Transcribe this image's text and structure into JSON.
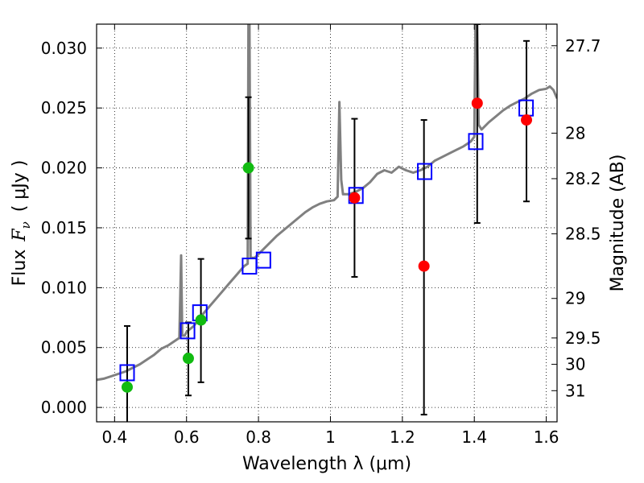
{
  "chart_data": {
    "type": "scatter",
    "xlabel": "Wavelength  λ (μm)",
    "ylabel": "Flux  Fν  ( μJy )",
    "ylabel_parts": {
      "prefix": "Flux",
      "symbol": "F",
      "subscript": "ν",
      "units": "( μJy )"
    },
    "y2label": "Magnitude (AB)",
    "xlim": [
      0.35,
      1.63
    ],
    "ylim": [
      -0.0012,
      0.032
    ],
    "xticks": [
      {
        "value": 0.4,
        "label": "0.4"
      },
      {
        "value": 0.6,
        "label": "0.6"
      },
      {
        "value": 0.8,
        "label": "0.8"
      },
      {
        "value": 1.0,
        "label": "1"
      },
      {
        "value": 1.2,
        "label": "1.2"
      },
      {
        "value": 1.4,
        "label": "1.4"
      },
      {
        "value": 1.6,
        "label": "1.6"
      }
    ],
    "yticks": [
      {
        "value": 0.0,
        "label": "0.000"
      },
      {
        "value": 0.005,
        "label": "0.005"
      },
      {
        "value": 0.01,
        "label": "0.010"
      },
      {
        "value": 0.015,
        "label": "0.015"
      },
      {
        "value": 0.02,
        "label": "0.020"
      },
      {
        "value": 0.025,
        "label": "0.025"
      },
      {
        "value": 0.03,
        "label": "0.030"
      }
    ],
    "y2ticks": [
      {
        "flux": 0.0302,
        "label": "27.7"
      },
      {
        "flux": 0.0229,
        "label": "28"
      },
      {
        "flux": 0.0191,
        "label": "28.2"
      },
      {
        "flux": 0.0145,
        "label": "28.5"
      },
      {
        "flux": 0.0091,
        "label": "29"
      },
      {
        "flux": 0.0058,
        "label": "29.5"
      },
      {
        "flux": 0.0036,
        "label": "30"
      },
      {
        "flux": 0.0014,
        "label": "31"
      }
    ],
    "grid": true,
    "colors": {
      "spectrum": "#808080",
      "model_box": "#0000ff",
      "detection": "#11bb11",
      "ir_detection": "#ff0000",
      "errorbar": "#000000"
    },
    "spectrum": {
      "x": [
        0.35,
        0.37,
        0.39,
        0.41,
        0.43,
        0.45,
        0.47,
        0.49,
        0.51,
        0.53,
        0.55,
        0.57,
        0.58,
        0.585,
        0.588,
        0.595,
        0.6,
        0.62,
        0.64,
        0.66,
        0.68,
        0.7,
        0.72,
        0.74,
        0.76,
        0.77,
        0.772,
        0.775,
        0.778,
        0.79,
        0.81,
        0.83,
        0.85,
        0.87,
        0.89,
        0.91,
        0.93,
        0.95,
        0.97,
        0.99,
        1.01,
        1.02,
        1.025,
        1.03,
        1.035,
        1.05,
        1.07,
        1.09,
        1.11,
        1.13,
        1.15,
        1.17,
        1.19,
        1.21,
        1.23,
        1.25,
        1.27,
        1.29,
        1.31,
        1.33,
        1.35,
        1.37,
        1.39,
        1.4,
        1.403,
        1.405,
        1.408,
        1.412,
        1.42,
        1.44,
        1.46,
        1.48,
        1.5,
        1.52,
        1.54,
        1.56,
        1.58,
        1.6,
        1.61,
        1.62,
        1.63
      ],
      "y": [
        0.0023,
        0.0024,
        0.0026,
        0.0028,
        0.003,
        0.0033,
        0.0036,
        0.004,
        0.0044,
        0.0049,
        0.0052,
        0.0056,
        0.0058,
        0.0127,
        0.006,
        0.006,
        0.0063,
        0.0068,
        0.0076,
        0.0083,
        0.009,
        0.0097,
        0.0104,
        0.0111,
        0.0118,
        0.012,
        0.032,
        0.032,
        0.0125,
        0.0125,
        0.0131,
        0.0137,
        0.0143,
        0.0148,
        0.0153,
        0.0158,
        0.0163,
        0.0167,
        0.017,
        0.0172,
        0.0173,
        0.0176,
        0.0255,
        0.019,
        0.0178,
        0.0178,
        0.018,
        0.0183,
        0.0188,
        0.0195,
        0.0198,
        0.0196,
        0.0201,
        0.0198,
        0.0196,
        0.0198,
        0.0201,
        0.0206,
        0.0209,
        0.0212,
        0.0215,
        0.0218,
        0.0222,
        0.0226,
        0.032,
        0.032,
        0.032,
        0.0236,
        0.0232,
        0.0238,
        0.0243,
        0.0248,
        0.0252,
        0.0255,
        0.0258,
        0.0262,
        0.0265,
        0.0266,
        0.0268,
        0.0265,
        0.0258
      ]
    },
    "model_boxes": [
      {
        "x": 0.435,
        "y": 0.0029
      },
      {
        "x": 0.603,
        "y": 0.0064
      },
      {
        "x": 0.637,
        "y": 0.0079
      },
      {
        "x": 0.775,
        "y": 0.0118
      },
      {
        "x": 0.814,
        "y": 0.0123
      },
      {
        "x": 1.071,
        "y": 0.0177
      },
      {
        "x": 1.262,
        "y": 0.0197
      },
      {
        "x": 1.404,
        "y": 0.0222
      },
      {
        "x": 1.544,
        "y": 0.025
      }
    ],
    "detections": [
      {
        "x": 0.435,
        "y": 0.0017,
        "yerr_low": -0.0013,
        "yerr_high": 0.0068,
        "color": "detection"
      },
      {
        "x": 0.605,
        "y": 0.0041,
        "yerr_low": 0.001,
        "yerr_high": 0.0071,
        "color": "detection"
      },
      {
        "x": 0.64,
        "y": 0.0073,
        "yerr_low": 0.0021,
        "yerr_high": 0.0124,
        "color": "detection"
      },
      {
        "x": 0.772,
        "y": 0.02,
        "yerr_low": 0.0141,
        "yerr_high": 0.0259,
        "color": "detection"
      },
      {
        "x": 1.067,
        "y": 0.0175,
        "yerr_low": 0.0109,
        "yerr_high": 0.0241,
        "color": "ir_detection"
      },
      {
        "x": 1.26,
        "y": 0.0118,
        "yerr_low": -0.0006,
        "yerr_high": 0.024,
        "color": "ir_detection"
      },
      {
        "x": 1.408,
        "y": 0.0254,
        "yerr_low": 0.0154,
        "yerr_high": 0.032,
        "color": "ir_detection"
      },
      {
        "x": 1.545,
        "y": 0.024,
        "yerr_low": 0.0172,
        "yerr_high": 0.0306,
        "color": "ir_detection"
      }
    ]
  }
}
